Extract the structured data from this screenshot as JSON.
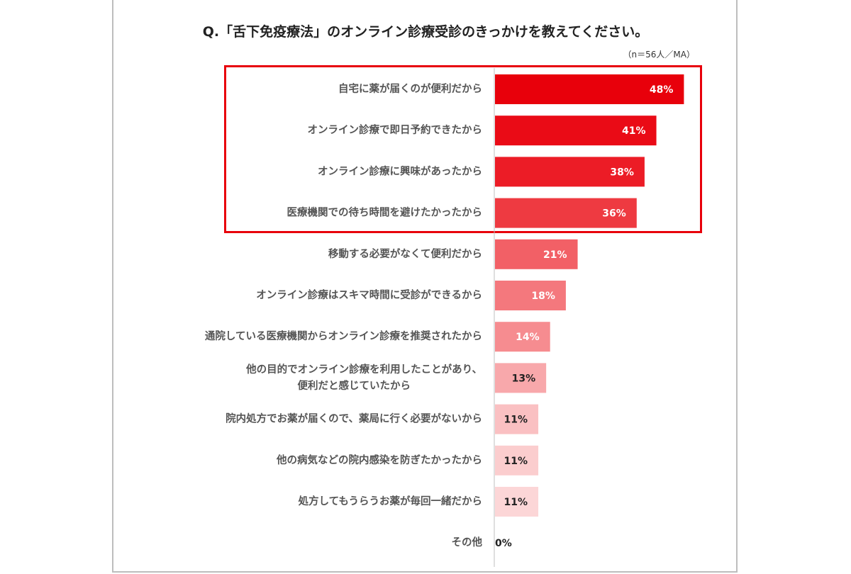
{
  "chart_data": {
    "type": "bar",
    "orientation": "horizontal",
    "title": "Q.「舌下免疫療法」のオンライン診療受診のきっかけを教えてください。",
    "note": "（n＝56人／MA）",
    "categories": [
      [
        "自宅に薬が届くのが便利だから"
      ],
      [
        "オンライン診療で即日予約できたから"
      ],
      [
        "オンライン診療に興味があったから"
      ],
      [
        "医療機関での待ち時間を避けたかったから"
      ],
      [
        "移動する必要がなくて便利だから"
      ],
      [
        "オンライン診療はスキマ時間に受診ができるから"
      ],
      [
        "通院している医療機関からオンライン診療を推奨されたから"
      ],
      [
        "他の目的でオンライン診療を利用したことがあり、",
        "便利だと感じていたから"
      ],
      [
        "院内処方でお薬が届くので、薬局に行く必要がないから"
      ],
      [
        "他の病気などの院内感染を防ぎたかったから"
      ],
      [
        "処方してもうらうお薬が毎回一緒だから"
      ],
      [
        "その他"
      ]
    ],
    "values": [
      48,
      41,
      38,
      36,
      21,
      18,
      14,
      13,
      11,
      11,
      11,
      0
    ],
    "value_labels": [
      "48%",
      "41%",
      "38%",
      "36%",
      "21%",
      "18%",
      "14%",
      "13%",
      "11%",
      "11%",
      "11%",
      "0%"
    ],
    "colors": [
      "#e8000b",
      "#ea0b16",
      "#ec1c26",
      "#ee3a41",
      "#f26066",
      "#f4787d",
      "#f68c90",
      "#f8a8ab",
      "#fac0c2",
      "#fbcdce",
      "#fcd6d7",
      "#fcd6d7"
    ],
    "highlight_color": "#e8000b",
    "highlighted_items": 4,
    "xlim": [
      0,
      100
    ],
    "grid": false
  }
}
